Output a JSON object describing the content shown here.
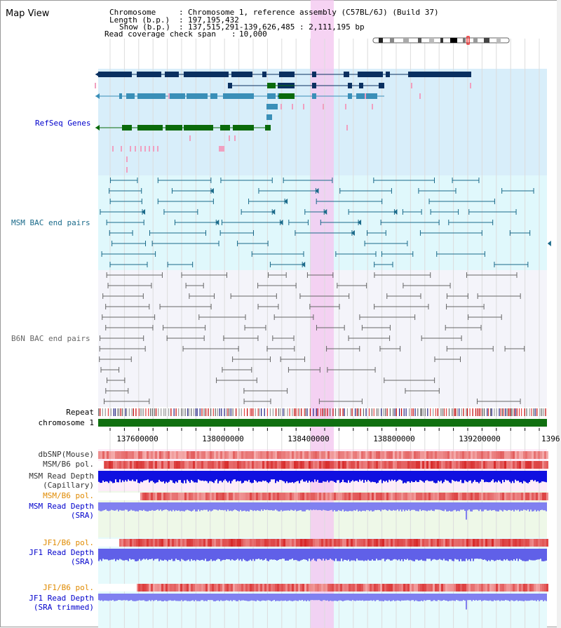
{
  "page_title": "Map View",
  "info": {
    "chromosome_label": "Chromosome",
    "chromosome_value": "Chromosome 1, reference assembly (C57BL/6J) (Build 37)",
    "length_label": "Length (b.p.)",
    "length_value": "197,195,432",
    "show_label": "Show (b.p.)",
    "show_value": "137,515,291-139,626,485 : 2,111,195 bp",
    "coverage_label": "Read coverage check span",
    "coverage_value": "10,000"
  },
  "tracks": {
    "refseq": "RefSeq Genes",
    "msm_bac": "MSM BAC end pairs",
    "b6n_bac": "B6N BAC end pairs",
    "repeat": "Repeat",
    "chromosome": "chromosome 1",
    "dbsnp": "dbSNP(Mouse)",
    "msm_b6_pol": "MSM/B6 pol.",
    "msm_depth_cap_1": "MSM Read Depth",
    "msm_depth_cap_2": "(Capillary)",
    "msm_b6_pol2": "MSM/B6 pol.",
    "msm_depth_sra_1": "MSM Read Depth",
    "msm_depth_sra_2": "(SRA)",
    "jf1_b6_pol": "JF1/B6 pol.",
    "jf1_depth_sra_1": "JF1 Read Depth",
    "jf1_depth_sra_2": "(SRA)",
    "jf1_b6_pol2": "JF1/B6 pol.",
    "jf1_depth_trim_1": "JF1 Read Depth",
    "jf1_depth_trim_2": "(SRA trimmed)"
  },
  "axis": {
    "ticks": [
      "137600000",
      "138000000",
      "138400000",
      "138800000",
      "139200000",
      "1396"
    ]
  },
  "colors": {
    "refseq_bg": "#d8eefa",
    "msm_bg": "#e0f8fc",
    "b6n_bg": "#f4f4fa",
    "highlight": "#f4c8f0",
    "refseq_dark": "#0a3060",
    "refseq_mid": "#3a8fb8",
    "refseq_green": "#0a6a0a",
    "msm_feature": "#1a6a8a",
    "b6n_feature": "#666666",
    "chromosome_bar": "#107010",
    "label_blue": "#0000cc",
    "label_teal": "#1a6a8a",
    "label_orange": "#e08a00"
  }
}
